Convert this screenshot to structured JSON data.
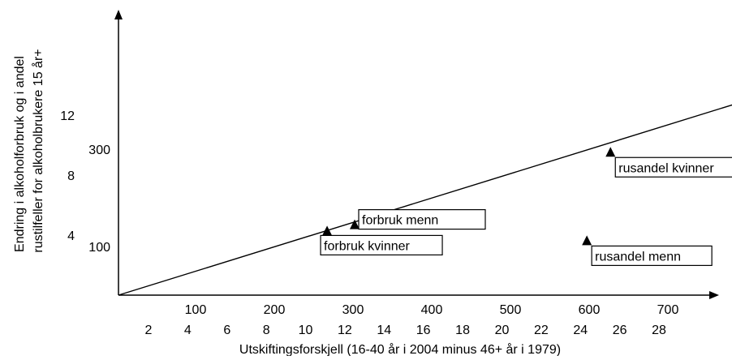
{
  "chart_data": {
    "type": "scatter",
    "xlabel": "Utskiftingsforskjell (16-40 år i 2004 minus 46+ år i 1979)",
    "ylabel_lines": [
      "Endring i alkoholforbruk og i andel",
      "rustilfeller for alkoholbrukere 15 år+"
    ],
    "x_primary_ticks": [
      "100",
      "200",
      "300",
      "400",
      "500",
      "600",
      "700"
    ],
    "x_secondary_ticks": [
      "2",
      "4",
      "6",
      "8",
      "10",
      "12",
      "14",
      "16",
      "18",
      "20",
      "22",
      "24",
      "26",
      "28"
    ],
    "y_primary_ticks": [
      "100",
      "300"
    ],
    "y_secondary_ticks": [
      "4",
      "8",
      "12"
    ],
    "xlim": [
      0,
      800
    ],
    "ylim_primary": [
      0,
      450
    ],
    "ylim_secondary": [
      0,
      18
    ],
    "trend_line": {
      "from": [
        0,
        0
      ],
      "to": [
        800,
        395
      ]
    },
    "points": [
      {
        "name": "forbruk kvinner",
        "x": 265,
        "y_primary": 131,
        "scale": "primary"
      },
      {
        "name": "forbruk menn",
        "x": 300,
        "y_primary": 144,
        "scale": "primary"
      },
      {
        "name": "rusandel menn",
        "x": 595,
        "y_secondary": 3.6,
        "scale": "secondary"
      },
      {
        "name": "rusandel kvinner",
        "x": 625,
        "y_secondary": 9.5,
        "scale": "secondary"
      }
    ],
    "legend": "none",
    "grid": false
  },
  "colors": {
    "axis": "#000000",
    "marker": "#000000",
    "box_fill": "#ffffff"
  }
}
